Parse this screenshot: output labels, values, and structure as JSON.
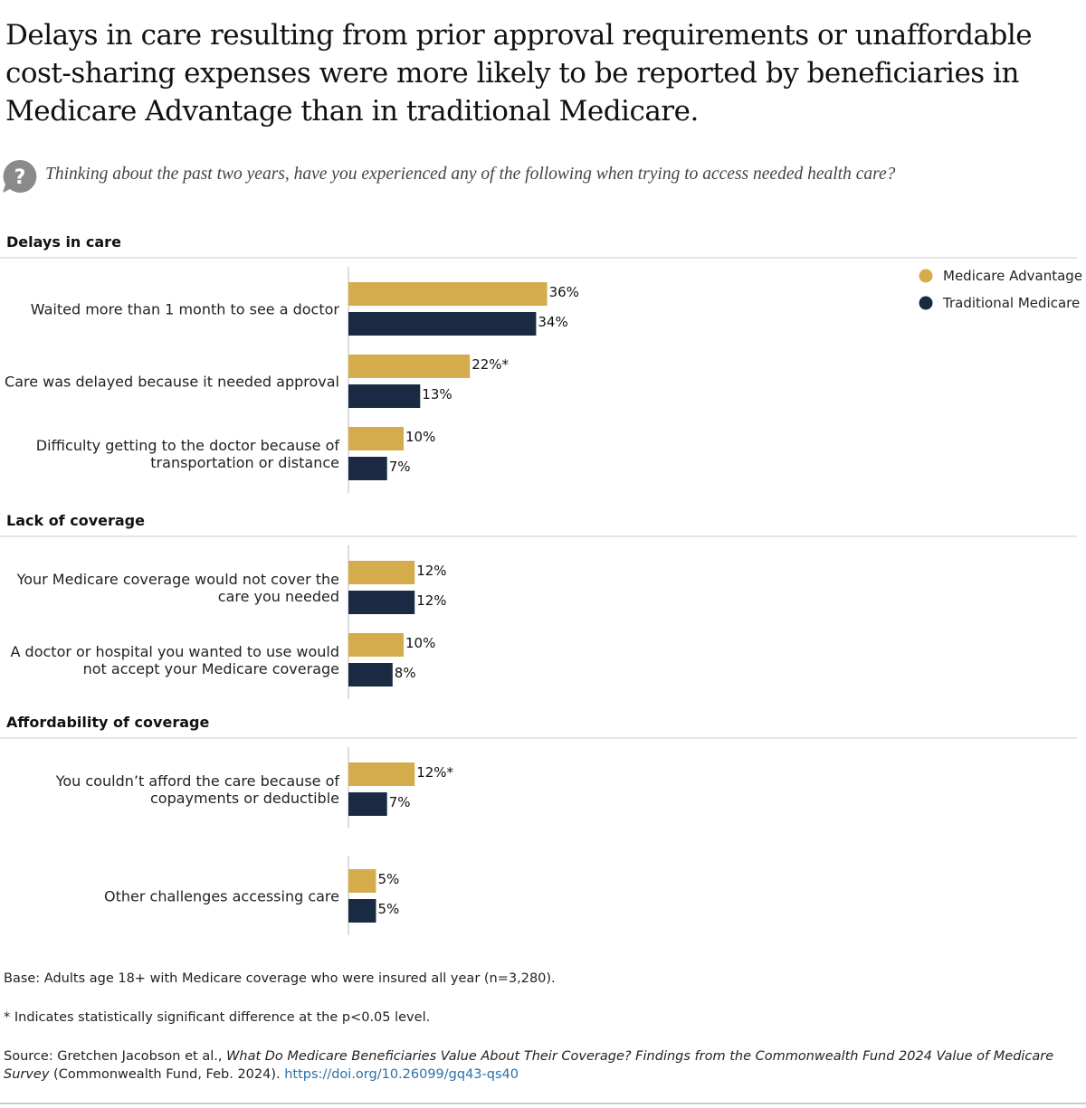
{
  "title": "Delays in care resulting from prior approval requirements or unaffordable cost-sharing expenses were more likely to be reported by beneficiaries in Medicare Advantage than in traditional Medicare.",
  "question": "Thinking about the past two years, have you experienced any of the following when trying to access needed health care?",
  "chart_data": {
    "type": "bar",
    "orientation": "horizontal",
    "xlim": [
      0,
      100
    ],
    "legend": "top-right",
    "groups": [
      {
        "title": "Delays in care",
        "categories": [
          "Waited more than 1 month to see a doctor",
          "Care was delayed because it needed approval",
          "Difficulty getting to the doctor because of transportation or distance"
        ]
      },
      {
        "title": "Lack of coverage",
        "categories": [
          "Your Medicare coverage would not cover the care you needed",
          "A doctor or hospital you wanted to use would not accept your Medicare coverage"
        ]
      },
      {
        "title": "Affordability of coverage",
        "categories": [
          "You couldn’t afford the care because of copayments or deductible"
        ]
      },
      {
        "title": null,
        "categories": [
          "Other challenges accessing care"
        ]
      }
    ],
    "series": [
      {
        "name": "Medicare Advantage",
        "color": "#d4ac4c",
        "values": [
          36,
          22,
          10,
          12,
          10,
          12,
          5
        ],
        "value_labels": [
          "36%",
          "22%*",
          "10%",
          "12%",
          "10%",
          "12%*",
          "5%"
        ]
      },
      {
        "name": "Traditional Medicare",
        "color": "#1a2a42",
        "values": [
          34,
          13,
          7,
          12,
          8,
          7,
          5
        ],
        "value_labels": [
          "34%",
          "13%",
          "7%",
          "12%",
          "8%",
          "7%",
          "5%"
        ]
      }
    ]
  },
  "notes": {
    "base": "Base: Adults age 18+ with Medicare coverage who were insured all year (n=3,280).",
    "significance": "* Indicates statistically significant difference at the p<0.05 level.",
    "source": {
      "prefix": "Source: Gretchen Jacobson et al., ",
      "title": "What Do Medicare Beneficiaries Value About Their Coverage? Findings from the Commonwealth Fund 2024 Value of Medicare Survey",
      "suffix": " (Commonwealth Fund, Feb. 2024). ",
      "link": "https://doi.org/10.26099/gq43-qs40"
    }
  }
}
